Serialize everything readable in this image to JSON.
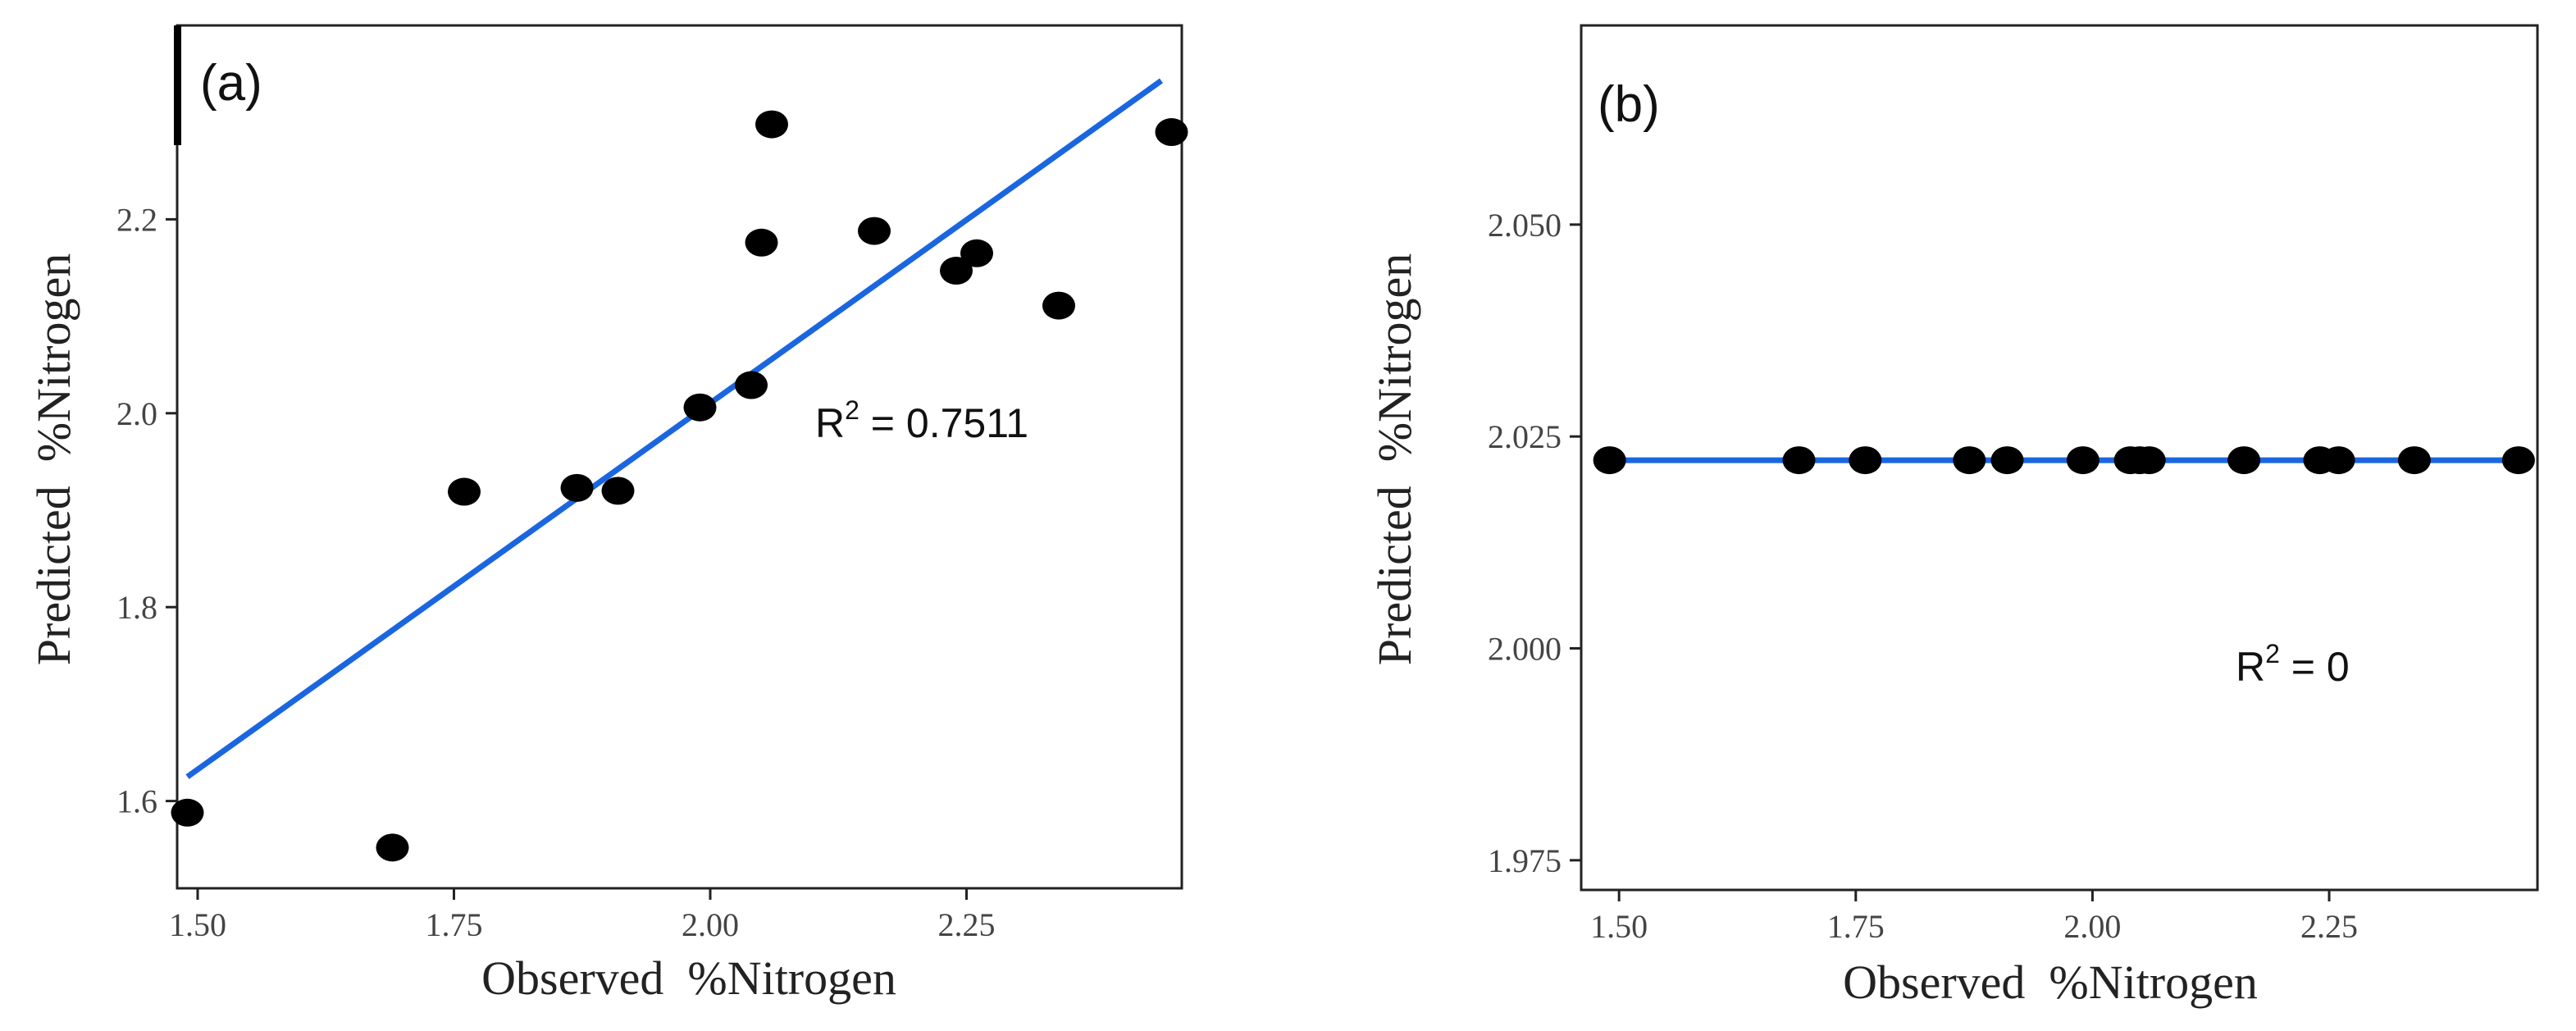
{
  "colors": {
    "fit_line": "#1a66e0",
    "points": "#000000",
    "frame": "#222222"
  },
  "chart_data": [
    {
      "type": "scatter",
      "panel_label": "(a)",
      "xlabel": "Observed  %Nitrogen",
      "ylabel": "Predicted  %Nitrogen",
      "xlim": [
        1.48,
        2.46
      ],
      "ylim": [
        1.51,
        2.4
      ],
      "xticks": [
        1.5,
        1.75,
        2.0,
        2.25
      ],
      "xtick_labels": [
        "1.50",
        "1.75",
        "2.00",
        "2.25"
      ],
      "yticks": [
        1.6,
        1.8,
        2.0,
        2.2
      ],
      "ytick_labels": [
        "1.6",
        "1.8",
        "2.0",
        "2.2"
      ],
      "points": [
        {
          "x": 1.49,
          "y": 1.588
        },
        {
          "x": 1.69,
          "y": 1.552
        },
        {
          "x": 1.76,
          "y": 1.919
        },
        {
          "x": 1.87,
          "y": 1.923
        },
        {
          "x": 1.91,
          "y": 1.92
        },
        {
          "x": 1.99,
          "y": 2.006
        },
        {
          "x": 2.04,
          "y": 2.029
        },
        {
          "x": 2.05,
          "y": 2.176
        },
        {
          "x": 2.06,
          "y": 2.298
        },
        {
          "x": 2.16,
          "y": 2.188
        },
        {
          "x": 2.24,
          "y": 2.147
        },
        {
          "x": 2.26,
          "y": 2.165
        },
        {
          "x": 2.34,
          "y": 2.111
        },
        {
          "x": 2.45,
          "y": 2.29
        }
      ],
      "fit_line": {
        "x": [
          1.49,
          2.44
        ],
        "y": [
          1.625,
          2.343
        ]
      },
      "r2_label": "R",
      "r2_superscript": "2",
      "r2_value": " = 0.7511",
      "grid": false
    },
    {
      "type": "scatter",
      "panel_label": "(b)",
      "xlabel": "Observed  %Nitrogen",
      "ylabel": "Predicted  %Nitrogen",
      "xlim": [
        1.46,
        2.47
      ],
      "ylim": [
        1.9715,
        2.0735
      ],
      "xticks": [
        1.5,
        1.75,
        2.0,
        2.25
      ],
      "xtick_labels": [
        "1.50",
        "1.75",
        "2.00",
        "2.25"
      ],
      "yticks": [
        1.975,
        2.0,
        2.025,
        2.05
      ],
      "ytick_labels": [
        "1.975",
        "2.000",
        "2.025",
        "2.050"
      ],
      "points": [
        {
          "x": 1.49,
          "y": 2.0222
        },
        {
          "x": 1.69,
          "y": 2.0222
        },
        {
          "x": 1.76,
          "y": 2.0222
        },
        {
          "x": 1.87,
          "y": 2.0222
        },
        {
          "x": 1.91,
          "y": 2.0222
        },
        {
          "x": 1.99,
          "y": 2.0222
        },
        {
          "x": 2.04,
          "y": 2.0222
        },
        {
          "x": 2.05,
          "y": 2.0222
        },
        {
          "x": 2.06,
          "y": 2.0222
        },
        {
          "x": 2.16,
          "y": 2.0222
        },
        {
          "x": 2.24,
          "y": 2.0222
        },
        {
          "x": 2.26,
          "y": 2.0222
        },
        {
          "x": 2.34,
          "y": 2.0222
        },
        {
          "x": 2.45,
          "y": 2.0222
        }
      ],
      "fit_line": {
        "x": [
          1.49,
          2.45
        ],
        "y": [
          2.0222,
          2.0222
        ]
      },
      "r2_label": "R",
      "r2_superscript": "2",
      "r2_value": " = 0",
      "grid": false
    }
  ]
}
